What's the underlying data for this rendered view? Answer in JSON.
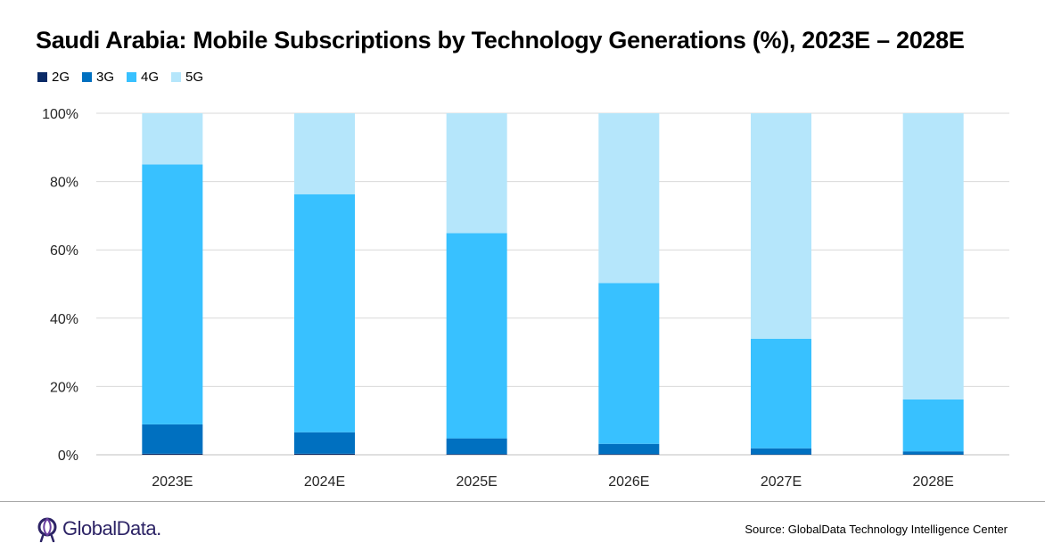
{
  "chart_data": {
    "type": "bar",
    "stacked": true,
    "title": "Saudi Arabia: Mobile Subscriptions by Technology Generations (%), 2023E – 2028E",
    "categories": [
      "2023E",
      "2024E",
      "2025E",
      "2026E",
      "2027E",
      "2028E"
    ],
    "series": [
      {
        "name": "2G",
        "color": "#0a2a66",
        "values": [
          0.3,
          0.3,
          0.2,
          0.2,
          0.1,
          0.1
        ]
      },
      {
        "name": "3G",
        "color": "#0070c0",
        "values": [
          8.6,
          6.3,
          4.6,
          3.0,
          1.8,
          0.9
        ]
      },
      {
        "name": "4G",
        "color": "#38c1ff",
        "values": [
          76.1,
          69.7,
          60.1,
          47.1,
          32.1,
          15.2
        ]
      },
      {
        "name": "5G",
        "color": "#b5e6fb",
        "values": [
          15.0,
          23.7,
          35.1,
          49.7,
          66.0,
          83.8
        ]
      }
    ],
    "ylim": [
      0,
      100
    ],
    "yticks": [
      "0%",
      "20%",
      "40%",
      "60%",
      "80%",
      "100%"
    ],
    "grid": true,
    "legend": "top-left"
  },
  "footer": {
    "brand": "GlobalData.",
    "source": "Source: GlobalData Technology Intelligence Center"
  }
}
